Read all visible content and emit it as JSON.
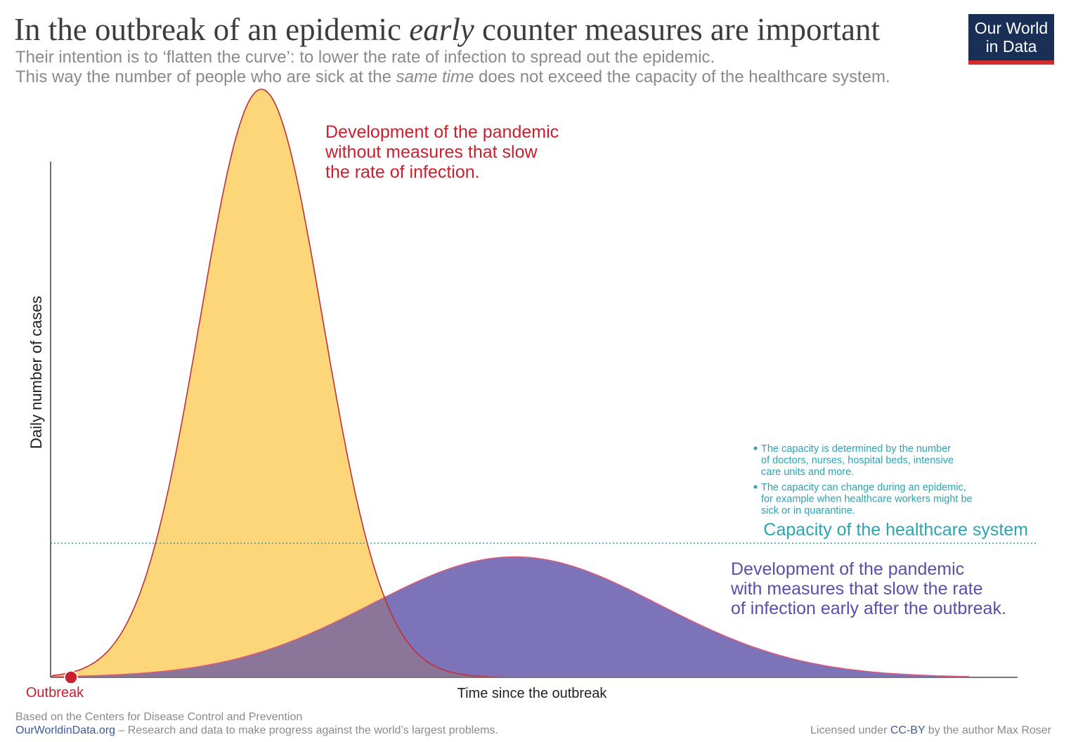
{
  "header": {
    "title_before": "In the outbreak of an epidemic ",
    "title_emph": "early",
    "title_after": " counter measures are important",
    "subtitle_line1": "Their intention is to ‘flatten the curve’: to lower the rate of infection to spread out the epidemic.",
    "subtitle_line2_before": "This way the number of people who are sick at the ",
    "subtitle_line2_emph": "same time",
    "subtitle_line2_after": " does not exceed the capacity of the healthcare system.",
    "logo_line1": "Our World",
    "logo_line2": "in Data"
  },
  "colors": {
    "unmitigated_fill": "#fdd67a",
    "unmitigated_stroke": "#c1303b",
    "mitigated_fill": "#7d73b8",
    "mitigated_stroke": "#e05a7a",
    "capacity_line": "#2aa3b3",
    "red_label": "#c8202e",
    "purple_label": "#5c4ea8",
    "teal_text": "#2aa3b3",
    "axis": "#333333",
    "logo_bg": "#1a2f55",
    "logo_bar": "#d42b2b"
  },
  "chart_data": {
    "type": "area",
    "x_label": "Time since the outbreak",
    "y_label": "Daily number of cases",
    "y_range": [
      0,
      1
    ],
    "grid": false,
    "series": [
      {
        "id": "unmitigated",
        "label_lines": [
          "Development of the pandemic",
          "without measures that slow",
          "the rate of infection."
        ],
        "shape": "gaussian",
        "x": [
          0.0,
          0.05,
          0.1,
          0.15,
          0.2,
          0.218,
          0.25,
          0.3,
          0.35,
          0.4,
          0.45,
          0.5,
          0.55
        ],
        "y": [
          0.0,
          0.03,
          0.19,
          0.55,
          0.92,
          1.0,
          0.95,
          0.62,
          0.26,
          0.06,
          0.01,
          0.0,
          0.0
        ]
      },
      {
        "id": "mitigated",
        "label_lines": [
          "Development of the pandemic",
          "with measures that slow the rate",
          "of infection early after the outbreak."
        ],
        "shape": "gaussian",
        "x": [
          0.0,
          0.1,
          0.2,
          0.3,
          0.4,
          0.48,
          0.55,
          0.65,
          0.75,
          0.85,
          0.95
        ],
        "y": [
          0.0,
          0.02,
          0.06,
          0.12,
          0.19,
          0.205,
          0.19,
          0.13,
          0.06,
          0.02,
          0.0
        ]
      }
    ],
    "capacity": {
      "y": 0.228,
      "label": "Capacity of the healthcare system",
      "notes": [
        [
          "The capacity is determined by the number",
          "of doctors, nurses, hospital beds, intensive",
          "care units and more."
        ],
        [
          "The capacity can change during an epidemic,",
          "for example when healthcare workers might be",
          "sick or in quarantine."
        ]
      ]
    },
    "outbreak_marker": {
      "x": 0.0,
      "label": "Outbreak"
    }
  },
  "footer": {
    "source": "Based on the Centers for Disease Control and Prevention",
    "site": "OurWorldinData.org",
    "tagline": " – Research and data to make progress against the world’s largest problems.",
    "license_before": "Licensed under ",
    "license": "CC-BY",
    "license_after": " by the author Max Roser"
  }
}
